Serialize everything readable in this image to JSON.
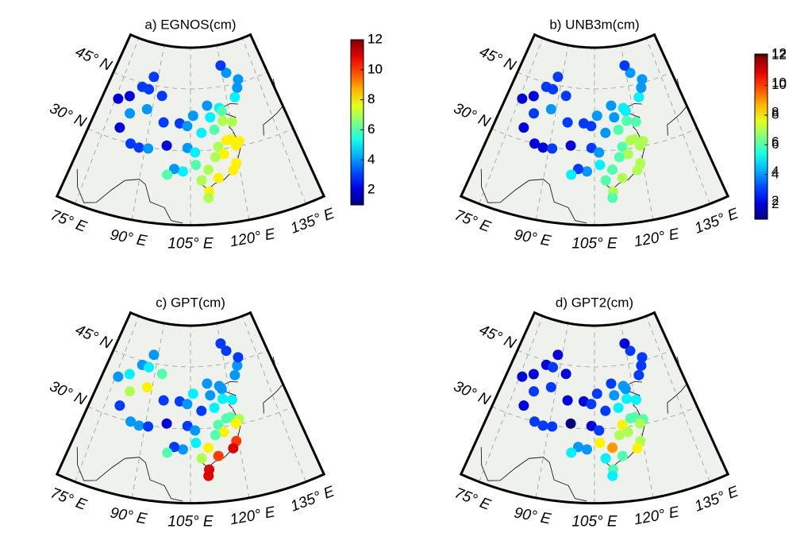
{
  "chart_data": [
    {
      "type": "scatter",
      "title": "a) EGNOS(cm)",
      "x": [
        76,
        80,
        84,
        87,
        88,
        82,
        88,
        93,
        80,
        85,
        88,
        91,
        97,
        95,
        101,
        103.8,
        106,
        111.7,
        116.4,
        117.2,
        123.4,
        125.3,
        126.6,
        122,
        120,
        108.9,
        112.5,
        113.6,
        117,
        120.4,
        118.8,
        121.5,
        120.2,
        117.3,
        114.3,
        104,
        106.5,
        106.7,
        102.7,
        100,
        108.3,
        113.3,
        115.9,
        113,
        119.3,
        118,
        110.3,
        110,
        98,
        110.5
      ],
      "y": [
        39.5,
        41,
        44,
        43.8,
        47,
        37,
        39,
        42.8,
        33,
        30,
        29.5,
        29.7,
        31,
        36.5,
        36.6,
        36,
        38.5,
        40.8,
        39.9,
        39.1,
        41.8,
        43.9,
        45.8,
        48,
        50,
        34.3,
        37.9,
        34.8,
        36.7,
        36.1,
        32,
        31.2,
        30.3,
        31.9,
        30.6,
        30.7,
        29.6,
        26.6,
        25,
        25.5,
        22.8,
        23.1,
        28.7,
        28.2,
        26.1,
        24.5,
        20,
        18.5,
        24,
        25.3
      ],
      "values": [
        2,
        2,
        3,
        3,
        3,
        4,
        4,
        3,
        2,
        3,
        3,
        4,
        2,
        3,
        3,
        4,
        4,
        4,
        5,
        6,
        5,
        4,
        4,
        4,
        3,
        5,
        5,
        6,
        7,
        7,
        8,
        8,
        8,
        8,
        7,
        4,
        5,
        6,
        5,
        4,
        7,
        8,
        8,
        7,
        8,
        8,
        8,
        7,
        6,
        7
      ],
      "xlim": [
        70,
        140
      ],
      "ylim": [
        12,
        55
      ],
      "xticks": [
        {
          "value": 75,
          "label": "75° E"
        },
        {
          "value": 90,
          "label": "90° E"
        },
        {
          "value": 105,
          "label": "105° E"
        },
        {
          "value": 120,
          "label": "120° E"
        },
        {
          "value": 135,
          "label": "135° E"
        }
      ],
      "yticks": [
        {
          "value": 30,
          "label": "30° N"
        },
        {
          "value": 45,
          "label": "45° N"
        }
      ],
      "clim": [
        1,
        12
      ],
      "cticks": [
        2,
        4,
        6,
        8,
        10,
        12
      ],
      "colormap": "jet",
      "grid": true
    },
    {
      "type": "scatter",
      "title": "b) UNB3m(cm)",
      "x": [
        76,
        80,
        84,
        87,
        88,
        82,
        88,
        93,
        80,
        85,
        88,
        91,
        97,
        95,
        101,
        103.8,
        106,
        111.7,
        116.4,
        117.2,
        123.4,
        125.3,
        126.6,
        122,
        120,
        108.9,
        112.5,
        113.6,
        117,
        120.4,
        118.8,
        121.5,
        120.2,
        117.3,
        114.3,
        104,
        106.5,
        106.7,
        102.7,
        100,
        108.3,
        113.3,
        115.9,
        113,
        119.3,
        118,
        110.3,
        110,
        98,
        110.5
      ],
      "y": [
        39.5,
        41,
        44,
        43.8,
        47,
        37,
        39,
        42.8,
        33,
        30,
        29.5,
        29.7,
        31,
        36.5,
        36.6,
        36,
        38.5,
        40.8,
        39.9,
        39.1,
        41.8,
        43.9,
        45.8,
        48,
        50,
        34.3,
        37.9,
        34.8,
        36.7,
        36.1,
        32,
        31.2,
        30.3,
        31.9,
        30.6,
        30.7,
        29.6,
        26.6,
        25,
        25.5,
        22.8,
        23.1,
        28.7,
        28.2,
        26.1,
        24.5,
        20,
        18.5,
        24,
        25.3
      ],
      "values": [
        2,
        2,
        3,
        3,
        3,
        3,
        4,
        3,
        2,
        2,
        2,
        3,
        2,
        3,
        3,
        3,
        4,
        4,
        5,
        5,
        5,
        4,
        4,
        4,
        3,
        4,
        4,
        6,
        6,
        6,
        7,
        7,
        7,
        7,
        6,
        3,
        4,
        5,
        4,
        3,
        6,
        7,
        7,
        6,
        7,
        7,
        7,
        6,
        5,
        6
      ],
      "xlim": [
        70,
        140
      ],
      "ylim": [
        12,
        55
      ],
      "xticks": [
        {
          "value": 75,
          "label": "75° E"
        },
        {
          "value": 90,
          "label": "90° E"
        },
        {
          "value": 105,
          "label": "105° E"
        },
        {
          "value": 120,
          "label": "120° E"
        },
        {
          "value": 135,
          "label": "135° E"
        }
      ],
      "yticks": [
        {
          "value": 30,
          "label": "30° N"
        },
        {
          "value": 45,
          "label": "45° N"
        }
      ],
      "clim": [
        1,
        12
      ],
      "cticks": [
        2,
        4,
        6,
        8,
        10,
        12
      ],
      "colormap": "jet",
      "grid": true
    },
    {
      "type": "scatter",
      "title": "c) GPT(cm)",
      "x": [
        76,
        80,
        84,
        87,
        88,
        82,
        88,
        93,
        80,
        85,
        88,
        91,
        97,
        95,
        101,
        103.8,
        106,
        111.7,
        116.4,
        117.2,
        123.4,
        125.3,
        126.6,
        122,
        120,
        108.9,
        112.5,
        113.6,
        117,
        120.4,
        118.8,
        121.5,
        120.2,
        117.3,
        114.3,
        104,
        106.5,
        106.7,
        102.7,
        100,
        108.3,
        113.3,
        115.9,
        113,
        119.3,
        118,
        110.3,
        110,
        98,
        110.5
      ],
      "y": [
        39.5,
        41,
        44,
        43.8,
        47,
        37,
        39,
        42.8,
        33,
        30,
        29.5,
        29.7,
        31,
        36.5,
        36.6,
        36,
        38.5,
        40.8,
        39.9,
        39.1,
        41.8,
        43.9,
        45.8,
        48,
        50,
        34.3,
        37.9,
        34.8,
        36.7,
        36.1,
        32,
        31.2,
        30.3,
        31.9,
        30.6,
        30.7,
        29.6,
        26.6,
        25,
        25.5,
        22.8,
        23.1,
        28.7,
        28.2,
        26.1,
        24.5,
        20,
        18.5,
        24,
        25.3
      ],
      "values": [
        4,
        5,
        4,
        5,
        4,
        7,
        8,
        6,
        3,
        4,
        4,
        3,
        2,
        3,
        3,
        4,
        5,
        4,
        4,
        4,
        4,
        4,
        3,
        3,
        3,
        3,
        4,
        5,
        5,
        5,
        6,
        7,
        8,
        6,
        6,
        3,
        4,
        5,
        4,
        3,
        7,
        10,
        8,
        6,
        10,
        11,
        11,
        11,
        6,
        8
      ],
      "xlim": [
        70,
        140
      ],
      "ylim": [
        12,
        55
      ],
      "xticks": [
        {
          "value": 75,
          "label": "75° E"
        },
        {
          "value": 90,
          "label": "90° E"
        },
        {
          "value": 105,
          "label": "105° E"
        },
        {
          "value": 120,
          "label": "120° E"
        },
        {
          "value": 135,
          "label": "135° E"
        }
      ],
      "yticks": [
        {
          "value": 30,
          "label": "30° N"
        },
        {
          "value": 45,
          "label": "45° N"
        }
      ],
      "clim": [
        1,
        12
      ],
      "cticks": [
        2,
        4,
        6,
        8,
        10,
        12
      ],
      "colormap": "jet",
      "grid": true
    },
    {
      "type": "scatter",
      "title": "d) GPT2(cm)",
      "x": [
        76,
        80,
        84,
        87,
        88,
        82,
        88,
        93,
        80,
        85,
        88,
        91,
        97,
        95,
        101,
        103.8,
        106,
        111.7,
        116.4,
        117.2,
        123.4,
        125.3,
        126.6,
        122,
        120,
        108.9,
        112.5,
        113.6,
        117,
        120.4,
        118.8,
        121.5,
        120.2,
        117.3,
        114.3,
        104,
        106.5,
        106.7,
        102.7,
        100,
        108.3,
        113.3,
        115.9,
        113,
        119.3,
        118,
        110.3,
        110,
        98,
        110.5
      ],
      "y": [
        39.5,
        41,
        44,
        43.8,
        47,
        37,
        39,
        42.8,
        33,
        30,
        29.5,
        29.7,
        31,
        36.5,
        36.6,
        36,
        38.5,
        40.8,
        39.9,
        39.1,
        41.8,
        43.9,
        45.8,
        48,
        50,
        34.3,
        37.9,
        34.8,
        36.7,
        36.1,
        32,
        31.2,
        30.3,
        31.9,
        30.6,
        30.7,
        29.6,
        26.6,
        25,
        25.5,
        22.8,
        23.1,
        28.7,
        28.2,
        26.1,
        24.5,
        20,
        18.5,
        24,
        25.3
      ],
      "values": [
        2,
        2,
        2,
        3,
        2,
        3,
        3,
        2,
        2,
        3,
        3,
        3,
        1,
        2,
        2,
        3,
        3,
        3,
        4,
        4,
        3,
        3,
        3,
        3,
        2,
        3,
        4,
        5,
        5,
        5,
        6,
        6,
        7,
        6,
        8,
        2,
        3,
        8,
        4,
        4,
        5,
        6,
        7,
        7,
        7,
        8,
        6,
        5,
        5,
        9
      ],
      "xlim": [
        70,
        140
      ],
      "ylim": [
        12,
        55
      ],
      "xticks": [
        {
          "value": 75,
          "label": "75° E"
        },
        {
          "value": 90,
          "label": "90° E"
        },
        {
          "value": 105,
          "label": "105° E"
        },
        {
          "value": 120,
          "label": "120° E"
        },
        {
          "value": 135,
          "label": "135° E"
        }
      ],
      "yticks": [
        {
          "value": 30,
          "label": "30° N"
        },
        {
          "value": 45,
          "label": "45° N"
        }
      ],
      "clim": [
        1,
        12
      ],
      "cticks": [
        2,
        4,
        6,
        8,
        10,
        12
      ],
      "colormap": "jet",
      "grid": true
    }
  ]
}
